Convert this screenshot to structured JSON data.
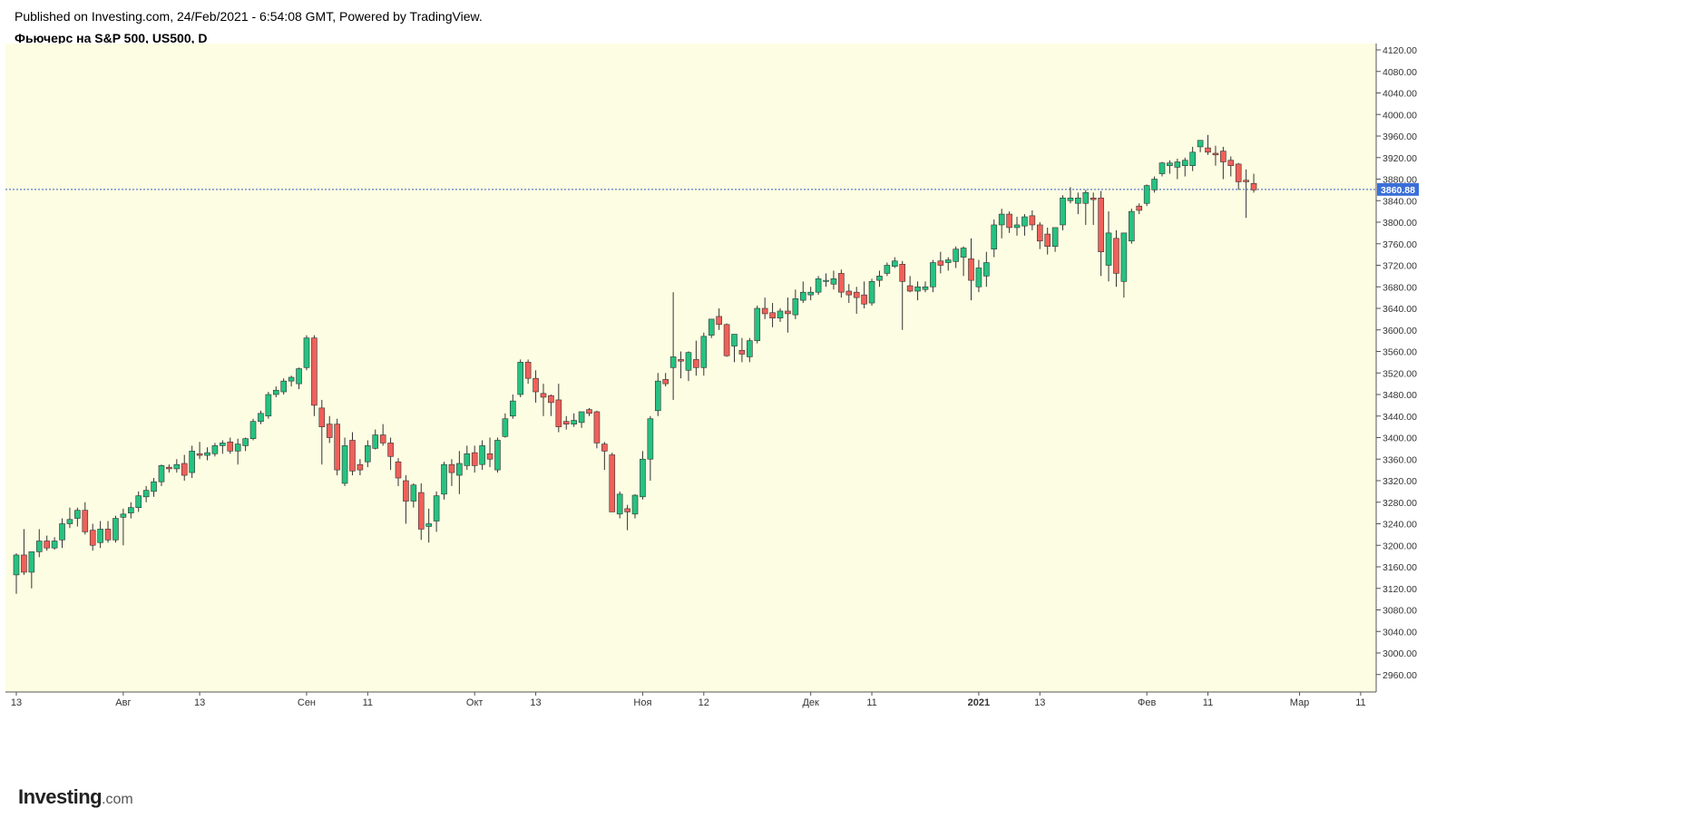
{
  "header": {
    "published": "Published on Investing.com, 24/Feb/2021 - 6:54:08 GMT, Powered by TradingView.",
    "title": "Фьючерс на S&P 500, US500, D"
  },
  "logo": {
    "word": "Investing",
    "suffix": ".com"
  },
  "colors": {
    "background": "#fdfde3",
    "up": "#26c281",
    "down": "#f0605a",
    "wick": "#333333",
    "price_line": "#3a5dbf",
    "price_tag": "#3a6fd8"
  },
  "chart_data": {
    "type": "candlestick",
    "title": "Фьючерс на S&P 500, US500, D",
    "current_price": 3860.88,
    "current_price_label": "3860.88",
    "ylim": [
      2940,
      4130
    ],
    "y_ticks": [
      "2960.00",
      "3000.00",
      "3040.00",
      "3080.00",
      "3120.00",
      "3160.00",
      "3200.00",
      "3240.00",
      "3280.00",
      "3320.00",
      "3360.00",
      "3400.00",
      "3440.00",
      "3480.00",
      "3520.00",
      "3560.00",
      "3600.00",
      "3640.00",
      "3680.00",
      "3720.00",
      "3760.00",
      "3800.00",
      "3840.00",
      "3880.00",
      "3920.00",
      "3960.00",
      "4000.00",
      "4040.00",
      "4080.00",
      "4120.00"
    ],
    "x_ticks": [
      {
        "label": "13",
        "index": 0,
        "bold": false
      },
      {
        "label": "Авг",
        "index": 14,
        "bold": false
      },
      {
        "label": "13",
        "index": 24,
        "bold": false
      },
      {
        "label": "Сен",
        "index": 38,
        "bold": false
      },
      {
        "label": "11",
        "index": 46,
        "bold": false
      },
      {
        "label": "Окт",
        "index": 60,
        "bold": false
      },
      {
        "label": "13",
        "index": 68,
        "bold": false
      },
      {
        "label": "Ноя",
        "index": 82,
        "bold": false
      },
      {
        "label": "12",
        "index": 90,
        "bold": false
      },
      {
        "label": "Дек",
        "index": 104,
        "bold": false
      },
      {
        "label": "11",
        "index": 112,
        "bold": false
      },
      {
        "label": "2021",
        "index": 126,
        "bold": true
      },
      {
        "label": "13",
        "index": 134,
        "bold": false
      },
      {
        "label": "Фев",
        "index": 148,
        "bold": false
      },
      {
        "label": "11",
        "index": 156,
        "bold": false
      },
      {
        "label": "Мар",
        "index": 168,
        "bold": false
      },
      {
        "label": "11",
        "index": 176,
        "bold": false
      }
    ],
    "candles": [
      {
        "o": 3145,
        "h": 3185,
        "l": 3110,
        "c": 3182
      },
      {
        "o": 3182,
        "h": 3230,
        "l": 3145,
        "c": 3150
      },
      {
        "o": 3150,
        "h": 3188,
        "l": 3120,
        "c": 3188
      },
      {
        "o": 3188,
        "h": 3230,
        "l": 3178,
        "c": 3208
      },
      {
        "o": 3208,
        "h": 3218,
        "l": 3190,
        "c": 3195
      },
      {
        "o": 3195,
        "h": 3215,
        "l": 3192,
        "c": 3208
      },
      {
        "o": 3210,
        "h": 3250,
        "l": 3195,
        "c": 3240
      },
      {
        "o": 3240,
        "h": 3270,
        "l": 3232,
        "c": 3248
      },
      {
        "o": 3250,
        "h": 3270,
        "l": 3235,
        "c": 3265
      },
      {
        "o": 3265,
        "h": 3280,
        "l": 3220,
        "c": 3225
      },
      {
        "o": 3228,
        "h": 3240,
        "l": 3190,
        "c": 3200
      },
      {
        "o": 3205,
        "h": 3245,
        "l": 3195,
        "c": 3230
      },
      {
        "o": 3230,
        "h": 3245,
        "l": 3205,
        "c": 3210
      },
      {
        "o": 3210,
        "h": 3255,
        "l": 3205,
        "c": 3250
      },
      {
        "o": 3252,
        "h": 3268,
        "l": 3200,
        "c": 3258
      },
      {
        "o": 3260,
        "h": 3280,
        "l": 3250,
        "c": 3270
      },
      {
        "o": 3270,
        "h": 3300,
        "l": 3262,
        "c": 3292
      },
      {
        "o": 3290,
        "h": 3310,
        "l": 3280,
        "c": 3302
      },
      {
        "o": 3300,
        "h": 3325,
        "l": 3290,
        "c": 3318
      },
      {
        "o": 3318,
        "h": 3350,
        "l": 3310,
        "c": 3348
      },
      {
        "o": 3345,
        "h": 3350,
        "l": 3335,
        "c": 3342
      },
      {
        "o": 3342,
        "h": 3360,
        "l": 3335,
        "c": 3350
      },
      {
        "o": 3352,
        "h": 3368,
        "l": 3320,
        "c": 3330
      },
      {
        "o": 3335,
        "h": 3385,
        "l": 3325,
        "c": 3375
      },
      {
        "o": 3370,
        "h": 3392,
        "l": 3360,
        "c": 3367
      },
      {
        "o": 3367,
        "h": 3382,
        "l": 3358,
        "c": 3372
      },
      {
        "o": 3370,
        "h": 3390,
        "l": 3365,
        "c": 3385
      },
      {
        "o": 3385,
        "h": 3395,
        "l": 3370,
        "c": 3390
      },
      {
        "o": 3392,
        "h": 3400,
        "l": 3370,
        "c": 3375
      },
      {
        "o": 3375,
        "h": 3398,
        "l": 3350,
        "c": 3388
      },
      {
        "o": 3385,
        "h": 3400,
        "l": 3375,
        "c": 3398
      },
      {
        "o": 3398,
        "h": 3435,
        "l": 3395,
        "c": 3430
      },
      {
        "o": 3430,
        "h": 3450,
        "l": 3425,
        "c": 3445
      },
      {
        "o": 3440,
        "h": 3485,
        "l": 3435,
        "c": 3480
      },
      {
        "o": 3480,
        "h": 3495,
        "l": 3475,
        "c": 3488
      },
      {
        "o": 3485,
        "h": 3510,
        "l": 3480,
        "c": 3505
      },
      {
        "o": 3505,
        "h": 3515,
        "l": 3495,
        "c": 3512
      },
      {
        "o": 3500,
        "h": 3530,
        "l": 3490,
        "c": 3528
      },
      {
        "o": 3530,
        "h": 3590,
        "l": 3525,
        "c": 3585
      },
      {
        "o": 3585,
        "h": 3590,
        "l": 3440,
        "c": 3460
      },
      {
        "o": 3455,
        "h": 3470,
        "l": 3350,
        "c": 3420
      },
      {
        "o": 3425,
        "h": 3440,
        "l": 3390,
        "c": 3400
      },
      {
        "o": 3425,
        "h": 3435,
        "l": 3330,
        "c": 3340
      },
      {
        "o": 3315,
        "h": 3400,
        "l": 3310,
        "c": 3385
      },
      {
        "o": 3395,
        "h": 3410,
        "l": 3330,
        "c": 3338
      },
      {
        "o": 3350,
        "h": 3360,
        "l": 3330,
        "c": 3340
      },
      {
        "o": 3355,
        "h": 3395,
        "l": 3345,
        "c": 3385
      },
      {
        "o": 3380,
        "h": 3415,
        "l": 3378,
        "c": 3405
      },
      {
        "o": 3405,
        "h": 3425,
        "l": 3385,
        "c": 3390
      },
      {
        "o": 3390,
        "h": 3400,
        "l": 3340,
        "c": 3365
      },
      {
        "o": 3355,
        "h": 3362,
        "l": 3310,
        "c": 3325
      },
      {
        "o": 3320,
        "h": 3330,
        "l": 3240,
        "c": 3282
      },
      {
        "o": 3282,
        "h": 3315,
        "l": 3270,
        "c": 3312
      },
      {
        "o": 3298,
        "h": 3315,
        "l": 3210,
        "c": 3230
      },
      {
        "o": 3235,
        "h": 3268,
        "l": 3205,
        "c": 3240
      },
      {
        "o": 3245,
        "h": 3300,
        "l": 3225,
        "c": 3292
      },
      {
        "o": 3295,
        "h": 3355,
        "l": 3285,
        "c": 3350
      },
      {
        "o": 3350,
        "h": 3360,
        "l": 3310,
        "c": 3335
      },
      {
        "o": 3330,
        "h": 3375,
        "l": 3295,
        "c": 3352
      },
      {
        "o": 3348,
        "h": 3385,
        "l": 3340,
        "c": 3370
      },
      {
        "o": 3372,
        "h": 3385,
        "l": 3335,
        "c": 3348
      },
      {
        "o": 3350,
        "h": 3395,
        "l": 3340,
        "c": 3385
      },
      {
        "o": 3370,
        "h": 3400,
        "l": 3345,
        "c": 3360
      },
      {
        "o": 3340,
        "h": 3400,
        "l": 3335,
        "c": 3395
      },
      {
        "o": 3402,
        "h": 3445,
        "l": 3400,
        "c": 3435
      },
      {
        "o": 3440,
        "h": 3480,
        "l": 3435,
        "c": 3468
      },
      {
        "o": 3480,
        "h": 3545,
        "l": 3475,
        "c": 3540
      },
      {
        "o": 3540,
        "h": 3545,
        "l": 3500,
        "c": 3510
      },
      {
        "o": 3510,
        "h": 3525,
        "l": 3465,
        "c": 3485
      },
      {
        "o": 3482,
        "h": 3500,
        "l": 3440,
        "c": 3475
      },
      {
        "o": 3478,
        "h": 3480,
        "l": 3440,
        "c": 3465
      },
      {
        "o": 3470,
        "h": 3500,
        "l": 3410,
        "c": 3420
      },
      {
        "o": 3430,
        "h": 3440,
        "l": 3415,
        "c": 3425
      },
      {
        "o": 3425,
        "h": 3445,
        "l": 3420,
        "c": 3432
      },
      {
        "o": 3428,
        "h": 3445,
        "l": 3418,
        "c": 3448
      },
      {
        "o": 3452,
        "h": 3455,
        "l": 3440,
        "c": 3445
      },
      {
        "o": 3448,
        "h": 3450,
        "l": 3380,
        "c": 3390
      },
      {
        "o": 3388,
        "h": 3392,
        "l": 3340,
        "c": 3375
      },
      {
        "o": 3368,
        "h": 3372,
        "l": 3262,
        "c": 3262
      },
      {
        "o": 3258,
        "h": 3300,
        "l": 3250,
        "c": 3295
      },
      {
        "o": 3268,
        "h": 3275,
        "l": 3228,
        "c": 3262
      },
      {
        "o": 3258,
        "h": 3295,
        "l": 3250,
        "c": 3293
      },
      {
        "o": 3290,
        "h": 3375,
        "l": 3285,
        "c": 3360
      },
      {
        "o": 3360,
        "h": 3440,
        "l": 3320,
        "c": 3435
      },
      {
        "o": 3450,
        "h": 3520,
        "l": 3440,
        "c": 3505
      },
      {
        "o": 3508,
        "h": 3520,
        "l": 3495,
        "c": 3500
      },
      {
        "o": 3530,
        "h": 3670,
        "l": 3470,
        "c": 3550
      },
      {
        "o": 3545,
        "h": 3560,
        "l": 3510,
        "c": 3542
      },
      {
        "o": 3525,
        "h": 3560,
        "l": 3505,
        "c": 3558
      },
      {
        "o": 3545,
        "h": 3580,
        "l": 3515,
        "c": 3530
      },
      {
        "o": 3530,
        "h": 3595,
        "l": 3515,
        "c": 3588
      },
      {
        "o": 3590,
        "h": 3620,
        "l": 3585,
        "c": 3620
      },
      {
        "o": 3625,
        "h": 3640,
        "l": 3600,
        "c": 3610
      },
      {
        "o": 3610,
        "h": 3612,
        "l": 3550,
        "c": 3552
      },
      {
        "o": 3570,
        "h": 3585,
        "l": 3540,
        "c": 3592
      },
      {
        "o": 3562,
        "h": 3585,
        "l": 3540,
        "c": 3555
      },
      {
        "o": 3550,
        "h": 3585,
        "l": 3540,
        "c": 3580
      },
      {
        "o": 3580,
        "h": 3645,
        "l": 3575,
        "c": 3640
      },
      {
        "o": 3640,
        "h": 3660,
        "l": 3620,
        "c": 3630
      },
      {
        "o": 3632,
        "h": 3650,
        "l": 3605,
        "c": 3622
      },
      {
        "o": 3622,
        "h": 3640,
        "l": 3615,
        "c": 3635
      },
      {
        "o": 3635,
        "h": 3660,
        "l": 3595,
        "c": 3630
      },
      {
        "o": 3628,
        "h": 3675,
        "l": 3620,
        "c": 3658
      },
      {
        "o": 3655,
        "h": 3690,
        "l": 3650,
        "c": 3670
      },
      {
        "o": 3665,
        "h": 3680,
        "l": 3655,
        "c": 3670
      },
      {
        "o": 3670,
        "h": 3700,
        "l": 3665,
        "c": 3695
      },
      {
        "o": 3690,
        "h": 3705,
        "l": 3680,
        "c": 3692
      },
      {
        "o": 3685,
        "h": 3710,
        "l": 3675,
        "c": 3695
      },
      {
        "o": 3705,
        "h": 3712,
        "l": 3660,
        "c": 3670
      },
      {
        "o": 3672,
        "h": 3685,
        "l": 3650,
        "c": 3665
      },
      {
        "o": 3670,
        "h": 3680,
        "l": 3630,
        "c": 3660
      },
      {
        "o": 3665,
        "h": 3690,
        "l": 3640,
        "c": 3648
      },
      {
        "o": 3650,
        "h": 3695,
        "l": 3645,
        "c": 3690
      },
      {
        "o": 3692,
        "h": 3710,
        "l": 3680,
        "c": 3700
      },
      {
        "o": 3705,
        "h": 3725,
        "l": 3700,
        "c": 3720
      },
      {
        "o": 3718,
        "h": 3735,
        "l": 3715,
        "c": 3728
      },
      {
        "o": 3722,
        "h": 3728,
        "l": 3600,
        "c": 3690
      },
      {
        "o": 3682,
        "h": 3700,
        "l": 3670,
        "c": 3672
      },
      {
        "o": 3672,
        "h": 3690,
        "l": 3655,
        "c": 3680
      },
      {
        "o": 3675,
        "h": 3690,
        "l": 3670,
        "c": 3680
      },
      {
        "o": 3680,
        "h": 3730,
        "l": 3670,
        "c": 3725
      },
      {
        "o": 3728,
        "h": 3745,
        "l": 3705,
        "c": 3720
      },
      {
        "o": 3725,
        "h": 3735,
        "l": 3710,
        "c": 3730
      },
      {
        "o": 3727,
        "h": 3755,
        "l": 3715,
        "c": 3750
      },
      {
        "o": 3735,
        "h": 3755,
        "l": 3700,
        "c": 3752
      },
      {
        "o": 3732,
        "h": 3770,
        "l": 3655,
        "c": 3692
      },
      {
        "o": 3680,
        "h": 3730,
        "l": 3670,
        "c": 3715
      },
      {
        "o": 3700,
        "h": 3745,
        "l": 3680,
        "c": 3725
      },
      {
        "o": 3750,
        "h": 3805,
        "l": 3735,
        "c": 3795
      },
      {
        "o": 3795,
        "h": 3825,
        "l": 3770,
        "c": 3815
      },
      {
        "o": 3815,
        "h": 3820,
        "l": 3780,
        "c": 3790
      },
      {
        "o": 3790,
        "h": 3810,
        "l": 3775,
        "c": 3795
      },
      {
        "o": 3793,
        "h": 3815,
        "l": 3775,
        "c": 3810
      },
      {
        "o": 3812,
        "h": 3822,
        "l": 3785,
        "c": 3795
      },
      {
        "o": 3795,
        "h": 3800,
        "l": 3750,
        "c": 3765
      },
      {
        "o": 3778,
        "h": 3790,
        "l": 3740,
        "c": 3755
      },
      {
        "o": 3755,
        "h": 3790,
        "l": 3745,
        "c": 3790
      },
      {
        "o": 3795,
        "h": 3850,
        "l": 3785,
        "c": 3845
      },
      {
        "o": 3840,
        "h": 3865,
        "l": 3835,
        "c": 3845
      },
      {
        "o": 3835,
        "h": 3855,
        "l": 3815,
        "c": 3845
      },
      {
        "o": 3835,
        "h": 3860,
        "l": 3795,
        "c": 3855
      },
      {
        "o": 3845,
        "h": 3855,
        "l": 3795,
        "c": 3842
      },
      {
        "o": 3845,
        "h": 3858,
        "l": 3700,
        "c": 3745
      },
      {
        "o": 3720,
        "h": 3820,
        "l": 3690,
        "c": 3780
      },
      {
        "o": 3770,
        "h": 3785,
        "l": 3680,
        "c": 3705
      },
      {
        "o": 3690,
        "h": 3780,
        "l": 3660,
        "c": 3780
      },
      {
        "o": 3765,
        "h": 3825,
        "l": 3760,
        "c": 3820
      },
      {
        "o": 3830,
        "h": 3835,
        "l": 3815,
        "c": 3822
      },
      {
        "o": 3835,
        "h": 3870,
        "l": 3830,
        "c": 3868
      },
      {
        "o": 3860,
        "h": 3885,
        "l": 3855,
        "c": 3880
      },
      {
        "o": 3890,
        "h": 3912,
        "l": 3885,
        "c": 3910
      },
      {
        "o": 3905,
        "h": 3915,
        "l": 3890,
        "c": 3910
      },
      {
        "o": 3902,
        "h": 3918,
        "l": 3880,
        "c": 3912
      },
      {
        "o": 3905,
        "h": 3920,
        "l": 3885,
        "c": 3915
      },
      {
        "o": 3905,
        "h": 3940,
        "l": 3895,
        "c": 3930
      },
      {
        "o": 3940,
        "h": 3950,
        "l": 3930,
        "c": 3952
      },
      {
        "o": 3938,
        "h": 3962,
        "l": 3925,
        "c": 3930
      },
      {
        "o": 3928,
        "h": 3942,
        "l": 3905,
        "c": 3925
      },
      {
        "o": 3932,
        "h": 3940,
        "l": 3880,
        "c": 3912
      },
      {
        "o": 3915,
        "h": 3922,
        "l": 3885,
        "c": 3905
      },
      {
        "o": 3908,
        "h": 3910,
        "l": 3860,
        "c": 3875
      },
      {
        "o": 3878,
        "h": 3898,
        "l": 3808,
        "c": 3875
      },
      {
        "o": 3872,
        "h": 3890,
        "l": 3855,
        "c": 3860
      }
    ]
  }
}
